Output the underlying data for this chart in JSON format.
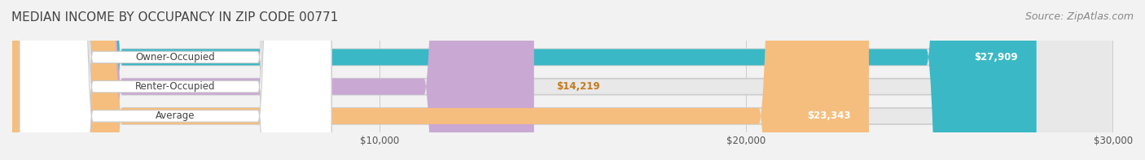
{
  "title": "MEDIAN INCOME BY OCCUPANCY IN ZIP CODE 00771",
  "source": "Source: ZipAtlas.com",
  "categories": [
    "Owner-Occupied",
    "Renter-Occupied",
    "Average"
  ],
  "values": [
    27909,
    14219,
    23343
  ],
  "bar_colors": [
    "#3ab8c5",
    "#c9a8d4",
    "#f5be7e"
  ],
  "label_colors": [
    "#ffffff",
    "#c47a1e",
    "#c47a1e"
  ],
  "value_labels": [
    "$27,909",
    "$14,219",
    "$23,343"
  ],
  "xlim": [
    0,
    30000
  ],
  "xticks": [
    10000,
    20000,
    30000
  ],
  "xticklabels": [
    "$10,000",
    "$20,000",
    "$30,000"
  ],
  "bar_height": 0.55,
  "background_color": "#f2f2f2",
  "bar_bg_color": "#e8e8e8",
  "title_fontsize": 11,
  "source_fontsize": 9
}
